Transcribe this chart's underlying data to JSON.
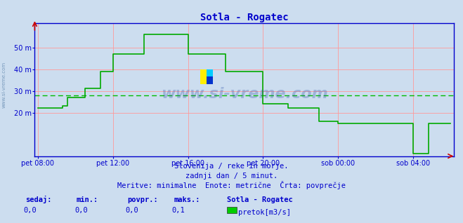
{
  "title": "Sotla - Rogatec",
  "bg_color": "#ccddef",
  "plot_bg_color": "#ccddef",
  "line_color": "#00aa00",
  "avg_line_color": "#00bb00",
  "axis_color": "#0000cc",
  "grid_color": "#ff9999",
  "ytick_labels": [
    "20 m",
    "30 m",
    "40 m",
    "50 m"
  ],
  "ytick_values": [
    20,
    30,
    40,
    50
  ],
  "xtick_labels": [
    "pet 08:00",
    "pet 12:00",
    "pet 16:00",
    "pet 20:00",
    "sob 00:00",
    "sob 04:00"
  ],
  "xtick_values": [
    0,
    240,
    480,
    720,
    960,
    1200
  ],
  "xlim": [
    -10,
    1330
  ],
  "ylim": [
    0,
    61
  ],
  "avg_value": 28.0,
  "subtitle1": "Slovenija / reke in morje.",
  "subtitle2": "zadnji dan / 5 minut.",
  "subtitle3": "Meritve: minimalne  Enote: metrične  Črta: povprečje",
  "footer_labels": [
    "sedaj:",
    "min.:",
    "povpr.:",
    "maks.:"
  ],
  "footer_values": [
    "0,0",
    "0,0",
    "0,0",
    "0,1"
  ],
  "station_label": "Sotla - Rogatec",
  "legend_label": "pretok[m3/s]",
  "legend_color": "#00cc00",
  "watermark": "www.si-vreme.com",
  "side_watermark": "www.si-vreme.com",
  "data_x": [
    0,
    5,
    10,
    15,
    20,
    25,
    30,
    35,
    40,
    45,
    50,
    55,
    60,
    65,
    70,
    75,
    80,
    85,
    90,
    95,
    100,
    105,
    110,
    115,
    120,
    125,
    130,
    135,
    140,
    145,
    150,
    155,
    160,
    165,
    170,
    175,
    180,
    185,
    190,
    195,
    200,
    205,
    210,
    215,
    220,
    225,
    230,
    235,
    240,
    245,
    250,
    255,
    260,
    265,
    270,
    275,
    280,
    285,
    290,
    295,
    300,
    305,
    310,
    315,
    320,
    325,
    330,
    335,
    340,
    345,
    350,
    355,
    360,
    365,
    370,
    375,
    380,
    385,
    390,
    395,
    400,
    405,
    410,
    415,
    420,
    425,
    430,
    435,
    440,
    445,
    450,
    455,
    460,
    465,
    470,
    475,
    480,
    485,
    490,
    495,
    500,
    505,
    510,
    515,
    520,
    525,
    530,
    535,
    540,
    545,
    550,
    555,
    560,
    565,
    570,
    575,
    580,
    585,
    590,
    595,
    600,
    605,
    610,
    615,
    620,
    625,
    630,
    635,
    640,
    645,
    650,
    655,
    660,
    665,
    670,
    675,
    680,
    685,
    690,
    695,
    700,
    705,
    710,
    715,
    720,
    725,
    730,
    735,
    740,
    745,
    750,
    755,
    760,
    765,
    770,
    775,
    780,
    785,
    790,
    795,
    800,
    805,
    810,
    815,
    820,
    825,
    830,
    835,
    840,
    845,
    850,
    855,
    860,
    865,
    870,
    875,
    880,
    885,
    890,
    895,
    900,
    905,
    910,
    915,
    920,
    925,
    930,
    935,
    940,
    945,
    950,
    955,
    960,
    965,
    970,
    975,
    980,
    985,
    990,
    995,
    1000,
    1005,
    1010,
    1015,
    1020,
    1025,
    1030,
    1035,
    1040,
    1045,
    1050,
    1055,
    1060,
    1065,
    1070,
    1075,
    1080,
    1085,
    1090,
    1095,
    1100,
    1105,
    1110,
    1115,
    1120,
    1125,
    1130,
    1135,
    1140,
    1145,
    1150,
    1155,
    1160,
    1165,
    1170,
    1175,
    1180,
    1185,
    1190,
    1195,
    1200,
    1205,
    1210,
    1215,
    1220,
    1225,
    1230,
    1235,
    1240,
    1245,
    1250,
    1255,
    1260,
    1265,
    1270,
    1275,
    1280,
    1285,
    1290,
    1295,
    1300,
    1305,
    1310,
    1315,
    1320
  ],
  "data_y": [
    22,
    22,
    22,
    22,
    22,
    22,
    22,
    22,
    22,
    22,
    22,
    22,
    22,
    22,
    22,
    22,
    23,
    23,
    23,
    27,
    27,
    27,
    27,
    27,
    27,
    27,
    27,
    27,
    27,
    27,
    31,
    31,
    31,
    31,
    31,
    31,
    31,
    31,
    31,
    31,
    39,
    39,
    39,
    39,
    39,
    39,
    39,
    39,
    47,
    47,
    47,
    47,
    47,
    47,
    47,
    47,
    47,
    47,
    47,
    47,
    47,
    47,
    47,
    47,
    47,
    47,
    47,
    47,
    56,
    56,
    56,
    56,
    56,
    56,
    56,
    56,
    56,
    56,
    56,
    56,
    56,
    56,
    56,
    56,
    56,
    56,
    56,
    56,
    56,
    56,
    56,
    56,
    56,
    56,
    56,
    56,
    47,
    47,
    47,
    47,
    47,
    47,
    47,
    47,
    47,
    47,
    47,
    47,
    47,
    47,
    47,
    47,
    47,
    47,
    47,
    47,
    47,
    47,
    47,
    47,
    39,
    39,
    39,
    39,
    39,
    39,
    39,
    39,
    39,
    39,
    39,
    39,
    39,
    39,
    39,
    39,
    39,
    39,
    39,
    39,
    39,
    39,
    39,
    39,
    24,
    24,
    24,
    24,
    24,
    24,
    24,
    24,
    24,
    24,
    24,
    24,
    24,
    24,
    24,
    24,
    22,
    22,
    22,
    22,
    22,
    22,
    22,
    22,
    22,
    22,
    22,
    22,
    22,
    22,
    22,
    22,
    22,
    22,
    22,
    22,
    16,
    16,
    16,
    16,
    16,
    16,
    16,
    16,
    16,
    16,
    16,
    16,
    15,
    15,
    15,
    15,
    15,
    15,
    15,
    15,
    15,
    15,
    15,
    15,
    15,
    15,
    15,
    15,
    15,
    15,
    15,
    15,
    15,
    15,
    15,
    15,
    15,
    15,
    15,
    15,
    15,
    15,
    15,
    15,
    15,
    15,
    15,
    15,
    15,
    15,
    15,
    15,
    15,
    15,
    15,
    15,
    15,
    15,
    15,
    15,
    1,
    1,
    1,
    1,
    1,
    1,
    1,
    1,
    1,
    1,
    15,
    15,
    15,
    15,
    15,
    15,
    15,
    15,
    15,
    15,
    15,
    15,
    15,
    15,
    15
  ]
}
